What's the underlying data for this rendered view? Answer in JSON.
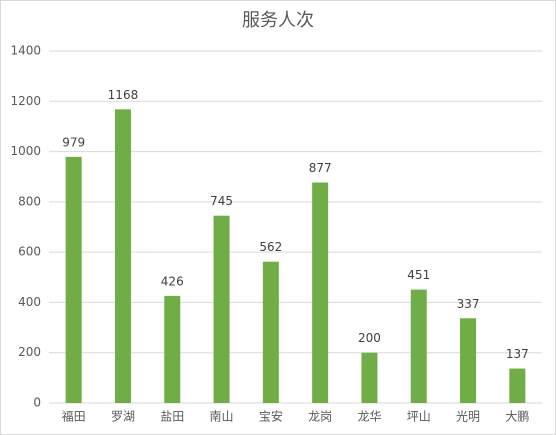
{
  "chart_data": {
    "type": "bar",
    "title": "服务人次",
    "categories": [
      "福田",
      "罗湖",
      "盐田",
      "南山",
      "宝安",
      "龙岗",
      "龙华",
      "坪山",
      "光明",
      "大鹏"
    ],
    "values": [
      979,
      1168,
      426,
      745,
      562,
      877,
      200,
      451,
      337,
      137
    ],
    "color": "#70ad47",
    "ylim": [
      0,
      1400
    ],
    "yticks": [
      0,
      200,
      400,
      600,
      800,
      1000,
      1200,
      1400
    ],
    "grid": true
  }
}
